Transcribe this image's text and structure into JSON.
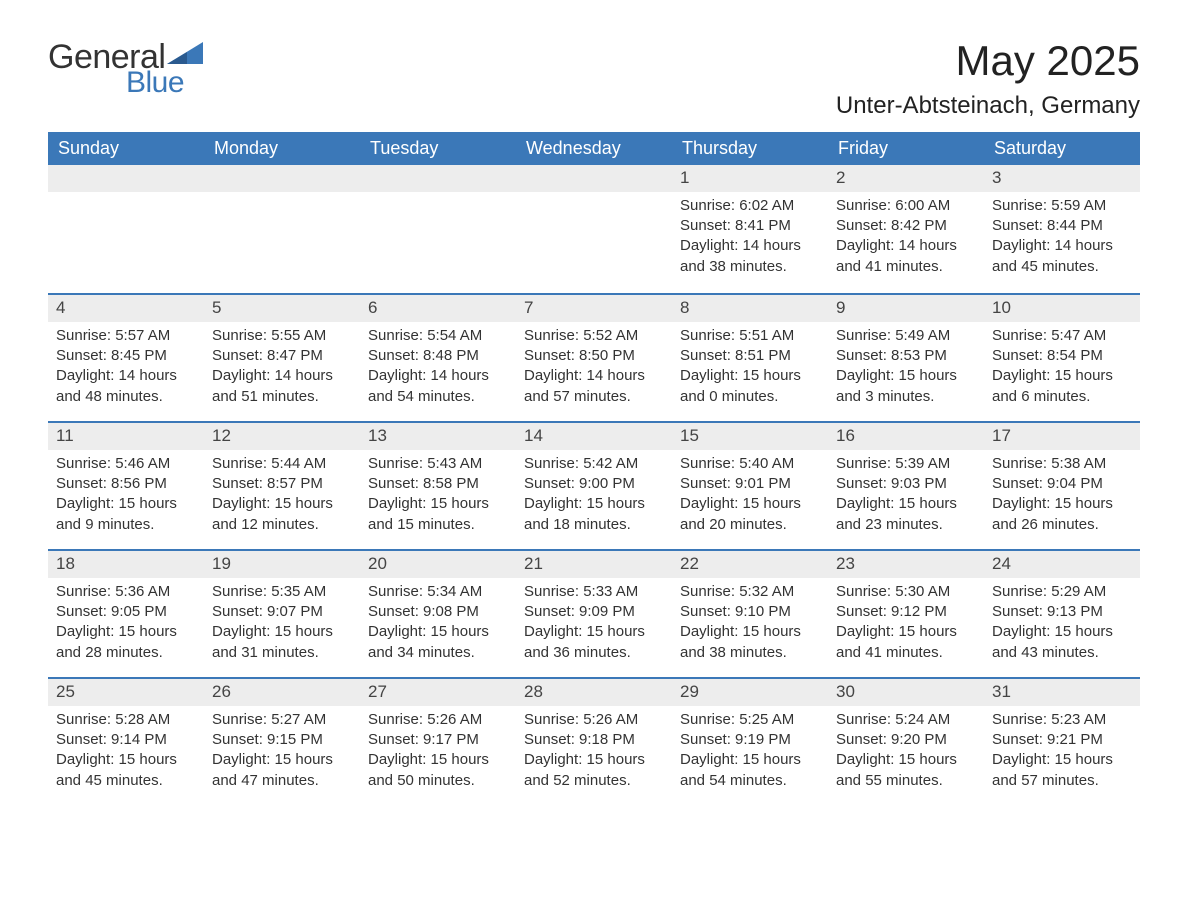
{
  "brand": {
    "general": "General",
    "blue": "Blue"
  },
  "title": "May 2025",
  "location": "Unter-Abtsteinach, Germany",
  "colors": {
    "header_bg": "#3b78b8",
    "header_text": "#ffffff",
    "daynum_bg": "#ededed",
    "text": "#333333",
    "week_border": "#3b78b8",
    "page_bg": "#ffffff"
  },
  "typography": {
    "title_fontsize": 42,
    "location_fontsize": 24,
    "weekday_fontsize": 18,
    "body_fontsize": 15,
    "font_family": "Arial"
  },
  "calendar": {
    "type": "table",
    "weekdays": [
      "Sunday",
      "Monday",
      "Tuesday",
      "Wednesday",
      "Thursday",
      "Friday",
      "Saturday"
    ],
    "first_weekday_index": 4,
    "days": [
      {
        "num": "1",
        "sunrise": "Sunrise: 6:02 AM",
        "sunset": "Sunset: 8:41 PM",
        "daylight": "Daylight: 14 hours and 38 minutes."
      },
      {
        "num": "2",
        "sunrise": "Sunrise: 6:00 AM",
        "sunset": "Sunset: 8:42 PM",
        "daylight": "Daylight: 14 hours and 41 minutes."
      },
      {
        "num": "3",
        "sunrise": "Sunrise: 5:59 AM",
        "sunset": "Sunset: 8:44 PM",
        "daylight": "Daylight: 14 hours and 45 minutes."
      },
      {
        "num": "4",
        "sunrise": "Sunrise: 5:57 AM",
        "sunset": "Sunset: 8:45 PM",
        "daylight": "Daylight: 14 hours and 48 minutes."
      },
      {
        "num": "5",
        "sunrise": "Sunrise: 5:55 AM",
        "sunset": "Sunset: 8:47 PM",
        "daylight": "Daylight: 14 hours and 51 minutes."
      },
      {
        "num": "6",
        "sunrise": "Sunrise: 5:54 AM",
        "sunset": "Sunset: 8:48 PM",
        "daylight": "Daylight: 14 hours and 54 minutes."
      },
      {
        "num": "7",
        "sunrise": "Sunrise: 5:52 AM",
        "sunset": "Sunset: 8:50 PM",
        "daylight": "Daylight: 14 hours and 57 minutes."
      },
      {
        "num": "8",
        "sunrise": "Sunrise: 5:51 AM",
        "sunset": "Sunset: 8:51 PM",
        "daylight": "Daylight: 15 hours and 0 minutes."
      },
      {
        "num": "9",
        "sunrise": "Sunrise: 5:49 AM",
        "sunset": "Sunset: 8:53 PM",
        "daylight": "Daylight: 15 hours and 3 minutes."
      },
      {
        "num": "10",
        "sunrise": "Sunrise: 5:47 AM",
        "sunset": "Sunset: 8:54 PM",
        "daylight": "Daylight: 15 hours and 6 minutes."
      },
      {
        "num": "11",
        "sunrise": "Sunrise: 5:46 AM",
        "sunset": "Sunset: 8:56 PM",
        "daylight": "Daylight: 15 hours and 9 minutes."
      },
      {
        "num": "12",
        "sunrise": "Sunrise: 5:44 AM",
        "sunset": "Sunset: 8:57 PM",
        "daylight": "Daylight: 15 hours and 12 minutes."
      },
      {
        "num": "13",
        "sunrise": "Sunrise: 5:43 AM",
        "sunset": "Sunset: 8:58 PM",
        "daylight": "Daylight: 15 hours and 15 minutes."
      },
      {
        "num": "14",
        "sunrise": "Sunrise: 5:42 AM",
        "sunset": "Sunset: 9:00 PM",
        "daylight": "Daylight: 15 hours and 18 minutes."
      },
      {
        "num": "15",
        "sunrise": "Sunrise: 5:40 AM",
        "sunset": "Sunset: 9:01 PM",
        "daylight": "Daylight: 15 hours and 20 minutes."
      },
      {
        "num": "16",
        "sunrise": "Sunrise: 5:39 AM",
        "sunset": "Sunset: 9:03 PM",
        "daylight": "Daylight: 15 hours and 23 minutes."
      },
      {
        "num": "17",
        "sunrise": "Sunrise: 5:38 AM",
        "sunset": "Sunset: 9:04 PM",
        "daylight": "Daylight: 15 hours and 26 minutes."
      },
      {
        "num": "18",
        "sunrise": "Sunrise: 5:36 AM",
        "sunset": "Sunset: 9:05 PM",
        "daylight": "Daylight: 15 hours and 28 minutes."
      },
      {
        "num": "19",
        "sunrise": "Sunrise: 5:35 AM",
        "sunset": "Sunset: 9:07 PM",
        "daylight": "Daylight: 15 hours and 31 minutes."
      },
      {
        "num": "20",
        "sunrise": "Sunrise: 5:34 AM",
        "sunset": "Sunset: 9:08 PM",
        "daylight": "Daylight: 15 hours and 34 minutes."
      },
      {
        "num": "21",
        "sunrise": "Sunrise: 5:33 AM",
        "sunset": "Sunset: 9:09 PM",
        "daylight": "Daylight: 15 hours and 36 minutes."
      },
      {
        "num": "22",
        "sunrise": "Sunrise: 5:32 AM",
        "sunset": "Sunset: 9:10 PM",
        "daylight": "Daylight: 15 hours and 38 minutes."
      },
      {
        "num": "23",
        "sunrise": "Sunrise: 5:30 AM",
        "sunset": "Sunset: 9:12 PM",
        "daylight": "Daylight: 15 hours and 41 minutes."
      },
      {
        "num": "24",
        "sunrise": "Sunrise: 5:29 AM",
        "sunset": "Sunset: 9:13 PM",
        "daylight": "Daylight: 15 hours and 43 minutes."
      },
      {
        "num": "25",
        "sunrise": "Sunrise: 5:28 AM",
        "sunset": "Sunset: 9:14 PM",
        "daylight": "Daylight: 15 hours and 45 minutes."
      },
      {
        "num": "26",
        "sunrise": "Sunrise: 5:27 AM",
        "sunset": "Sunset: 9:15 PM",
        "daylight": "Daylight: 15 hours and 47 minutes."
      },
      {
        "num": "27",
        "sunrise": "Sunrise: 5:26 AM",
        "sunset": "Sunset: 9:17 PM",
        "daylight": "Daylight: 15 hours and 50 minutes."
      },
      {
        "num": "28",
        "sunrise": "Sunrise: 5:26 AM",
        "sunset": "Sunset: 9:18 PM",
        "daylight": "Daylight: 15 hours and 52 minutes."
      },
      {
        "num": "29",
        "sunrise": "Sunrise: 5:25 AM",
        "sunset": "Sunset: 9:19 PM",
        "daylight": "Daylight: 15 hours and 54 minutes."
      },
      {
        "num": "30",
        "sunrise": "Sunrise: 5:24 AM",
        "sunset": "Sunset: 9:20 PM",
        "daylight": "Daylight: 15 hours and 55 minutes."
      },
      {
        "num": "31",
        "sunrise": "Sunrise: 5:23 AM",
        "sunset": "Sunset: 9:21 PM",
        "daylight": "Daylight: 15 hours and 57 minutes."
      }
    ]
  }
}
